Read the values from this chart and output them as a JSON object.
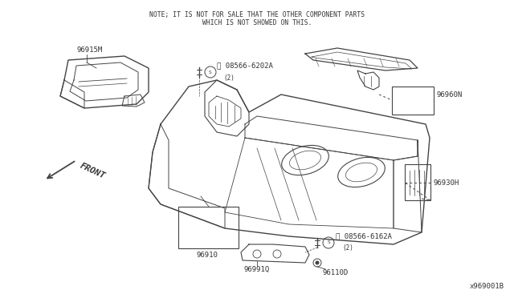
{
  "bg_color": "#ffffff",
  "line_color": "#444444",
  "text_color": "#333333",
  "note_line1": "NOTE; IT IS NOT FOR SALE THAT THE OTHER COMPONENT PARTS",
  "note_line2": "WHICH IS NOT SHOWED ON THIS.",
  "diagram_id": "x969001B",
  "front_label": "FRONT"
}
